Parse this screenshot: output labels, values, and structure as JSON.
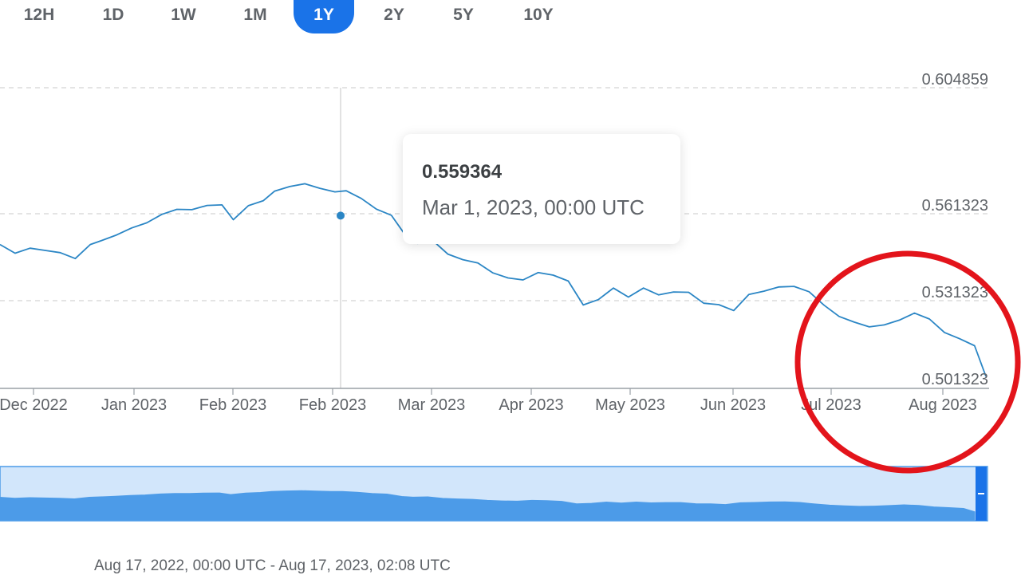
{
  "range_tabs": [
    {
      "label": "12H",
      "active": false
    },
    {
      "label": "1D",
      "active": false
    },
    {
      "label": "1W",
      "active": false
    },
    {
      "label": "1M",
      "active": false
    },
    {
      "label": "1Y",
      "active": true
    },
    {
      "label": "2Y",
      "active": false
    },
    {
      "label": "5Y",
      "active": false
    },
    {
      "label": "10Y",
      "active": false
    }
  ],
  "tooltip": {
    "value": "0.559364",
    "date": "Mar 1, 2023, 00:00 UTC"
  },
  "footer": {
    "range_text": "Aug 17, 2022, 00:00 UTC - Aug 17, 2023, 02:08 UTC"
  },
  "colors": {
    "line": "#2b86c5",
    "accent": "#1a73e8",
    "navigator_fill": "#4c9be8",
    "navigator_bg": "#d2e6fb",
    "annotation_circle": "#e3141b"
  },
  "chart_data": {
    "type": "line",
    "y_ticks": [
      "0.604859",
      "0.561323",
      "0.531323",
      "0.501323"
    ],
    "x_tick_labels": [
      "Dec 2022",
      "Jan 2023",
      "Feb 2023",
      "Feb 2023",
      "Mar 2023",
      "Apr 2023",
      "May 2023",
      "Jun 2023",
      "Jul 2023",
      "Aug 2023"
    ],
    "x_axis_label": "",
    "y_axis_label": "",
    "ylim": [
      0.501323,
      0.604859
    ],
    "grid": "horizontal dashed",
    "hover": {
      "x": "Mar 1, 2023",
      "y": 0.559364
    },
    "series": [
      {
        "x": [
          "2022-11-28",
          "2022-12-02",
          "2022-12-06",
          "2022-12-10",
          "2022-12-14",
          "2022-12-18",
          "2022-12-22",
          "2022-12-25",
          "2022-12-29",
          "2023-01-02",
          "2023-01-06",
          "2023-01-10",
          "2023-01-14",
          "2023-01-18",
          "2023-01-22",
          "2023-01-26",
          "2023-01-29",
          "2023-02-02",
          "2023-02-06",
          "2023-02-09",
          "2023-02-13",
          "2023-02-17",
          "2023-02-21",
          "2023-02-25",
          "2023-02-28",
          "2023-03-04",
          "2023-03-08",
          "2023-03-12",
          "2023-03-16",
          "2023-03-19",
          "2023-03-23",
          "2023-03-27",
          "2023-03-31",
          "2023-04-04",
          "2023-04-08",
          "2023-04-12",
          "2023-04-16",
          "2023-04-20",
          "2023-04-24",
          "2023-04-28",
          "2023-05-02",
          "2023-05-06",
          "2023-05-10",
          "2023-05-14",
          "2023-05-18",
          "2023-05-22",
          "2023-05-26",
          "2023-05-30",
          "2023-06-03",
          "2023-06-07",
          "2023-06-11",
          "2023-06-15",
          "2023-06-19",
          "2023-06-23",
          "2023-06-27",
          "2023-07-01",
          "2023-07-05",
          "2023-07-09",
          "2023-07-13",
          "2023-07-17",
          "2023-07-21",
          "2023-07-25",
          "2023-07-29",
          "2023-08-02",
          "2023-08-06",
          "2023-08-10",
          "2023-08-14",
          "2023-08-17"
        ],
        "values": [
          0.5491,
          0.546,
          0.5478,
          0.547,
          0.5462,
          0.5441,
          0.5491,
          0.5505,
          0.5525,
          0.555,
          0.5568,
          0.5598,
          0.5616,
          0.5615,
          0.563,
          0.5632,
          0.5579,
          0.5629,
          0.5647,
          0.5681,
          0.5697,
          0.5707,
          0.5691,
          0.5678,
          0.5682,
          0.5655,
          0.5617,
          0.5595,
          0.5519,
          0.5495,
          0.5505,
          0.5457,
          0.5437,
          0.5425,
          0.539,
          0.5372,
          0.5365,
          0.5391,
          0.5382,
          0.5361,
          0.5276,
          0.5295,
          0.5336,
          0.5304,
          0.5336,
          0.5312,
          0.5322,
          0.5321,
          0.5282,
          0.5277,
          0.5256,
          0.5313,
          0.5325,
          0.534,
          0.5342,
          0.5323,
          0.5275,
          0.5235,
          0.5215,
          0.5198,
          0.5205,
          0.5222,
          0.5247,
          0.5226,
          0.5178,
          0.5156,
          0.5131,
          0.5022
        ]
      }
    ]
  }
}
